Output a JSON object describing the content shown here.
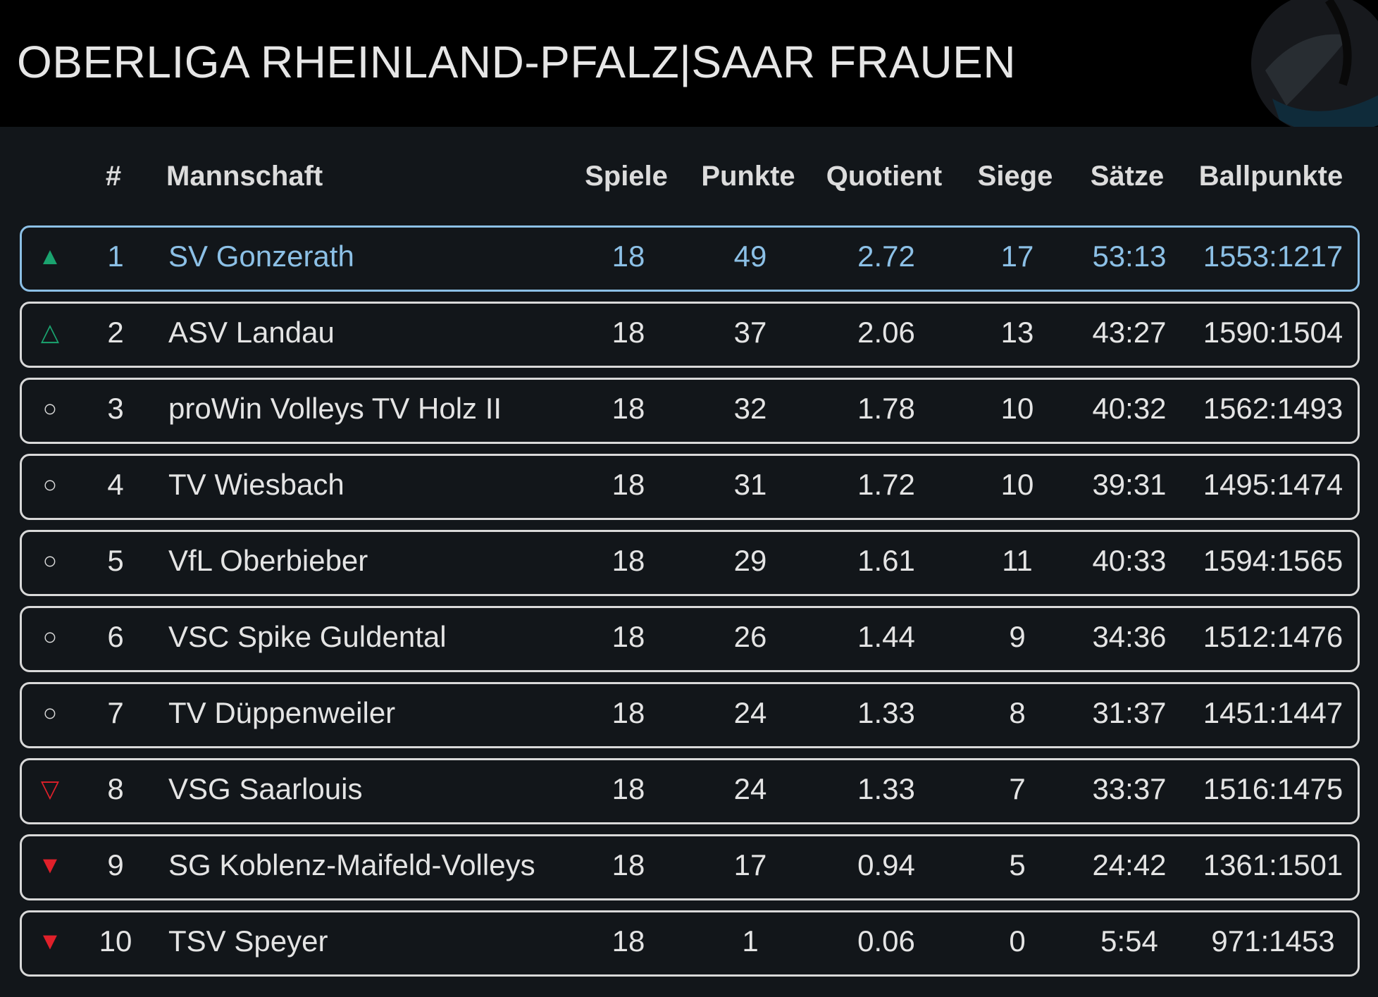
{
  "header": {
    "title": "OBERLIGA RHEINLAND-PFALZ|SAAR FRAUEN",
    "logo_icon": "volleyball-logo-icon"
  },
  "colors": {
    "promoted": "#1aa36f",
    "relegated": "#e0202a",
    "highlight": "#8cc0e6",
    "neutral": "#d9d9d9"
  },
  "columns": {
    "mark": "",
    "rank": "#",
    "team": "Mannschaft",
    "spiele": "Spiele",
    "punkte": "Punkte",
    "quotient": "Quotient",
    "siege": "Siege",
    "saetze": "Sätze",
    "ballpunkte": "Ballpunkte"
  },
  "rows": [
    {
      "status": "promoted-filled",
      "mark": "▲",
      "rank": "1",
      "team": "SV Gonzerath",
      "spiele": "18",
      "punkte": "49",
      "quotient": "2.72",
      "siege": "17",
      "saetze": "53:13",
      "ballpunkte": "1553:1217"
    },
    {
      "status": "promoted-outline",
      "mark": "△",
      "rank": "2",
      "team": "ASV Landau",
      "spiele": "18",
      "punkte": "37",
      "quotient": "2.06",
      "siege": "13",
      "saetze": "43:27",
      "ballpunkte": "1590:1504"
    },
    {
      "status": "neutral",
      "mark": "○",
      "rank": "3",
      "team": "proWin Volleys TV Holz II",
      "spiele": "18",
      "punkte": "32",
      "quotient": "1.78",
      "siege": "10",
      "saetze": "40:32",
      "ballpunkte": "1562:1493"
    },
    {
      "status": "neutral",
      "mark": "○",
      "rank": "4",
      "team": "TV Wiesbach",
      "spiele": "18",
      "punkte": "31",
      "quotient": "1.72",
      "siege": "10",
      "saetze": "39:31",
      "ballpunkte": "1495:1474"
    },
    {
      "status": "neutral",
      "mark": "○",
      "rank": "5",
      "team": "VfL Oberbieber",
      "spiele": "18",
      "punkte": "29",
      "quotient": "1.61",
      "siege": "11",
      "saetze": "40:33",
      "ballpunkte": "1594:1565"
    },
    {
      "status": "neutral",
      "mark": "○",
      "rank": "6",
      "team": "VSC Spike Guldental",
      "spiele": "18",
      "punkte": "26",
      "quotient": "1.44",
      "siege": "9",
      "saetze": "34:36",
      "ballpunkte": "1512:1476"
    },
    {
      "status": "neutral",
      "mark": "○",
      "rank": "7",
      "team": "TV Düppenweiler",
      "spiele": "18",
      "punkte": "24",
      "quotient": "1.33",
      "siege": "8",
      "saetze": "31:37",
      "ballpunkte": "1451:1447"
    },
    {
      "status": "relegated-outline",
      "mark": "▽",
      "rank": "8",
      "team": "VSG Saarlouis",
      "spiele": "18",
      "punkte": "24",
      "quotient": "1.33",
      "siege": "7",
      "saetze": "33:37",
      "ballpunkte": "1516:1475"
    },
    {
      "status": "relegated-filled",
      "mark": "▼",
      "rank": "9",
      "team": "SG Koblenz-Maifeld-Volleys",
      "spiele": "18",
      "punkte": "17",
      "quotient": "0.94",
      "siege": "5",
      "saetze": "24:42",
      "ballpunkte": "1361:1501"
    },
    {
      "status": "relegated-filled",
      "mark": "▼",
      "rank": "10",
      "team": "TSV Speyer",
      "spiele": "18",
      "punkte": "1",
      "quotient": "0.06",
      "siege": "0",
      "saetze": "5:54",
      "ballpunkte": "971:1453"
    }
  ]
}
